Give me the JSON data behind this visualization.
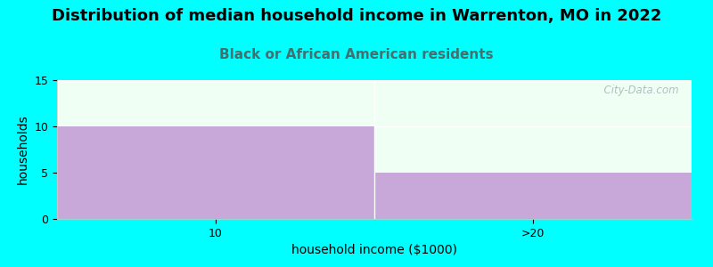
{
  "title": "Distribution of median household income in Warrenton, MO in 2022",
  "subtitle": "Black or African American residents",
  "xlabel": "household income ($1000)",
  "ylabel": "households",
  "categories": [
    "10",
    ">20"
  ],
  "values": [
    10,
    5
  ],
  "bar_color": "#c8a8d8",
  "background_color": "#00ffff",
  "plot_bg_color": "#f0fff4",
  "title_fontsize": 13,
  "subtitle_fontsize": 11,
  "subtitle_color": "#407070",
  "xlabel_fontsize": 10,
  "ylabel_fontsize": 10,
  "tick_fontsize": 9,
  "ylim": [
    0,
    15
  ],
  "yticks": [
    0,
    5,
    10,
    15
  ],
  "watermark": "  City-Data.com",
  "watermark_color": "#a0b8b8"
}
